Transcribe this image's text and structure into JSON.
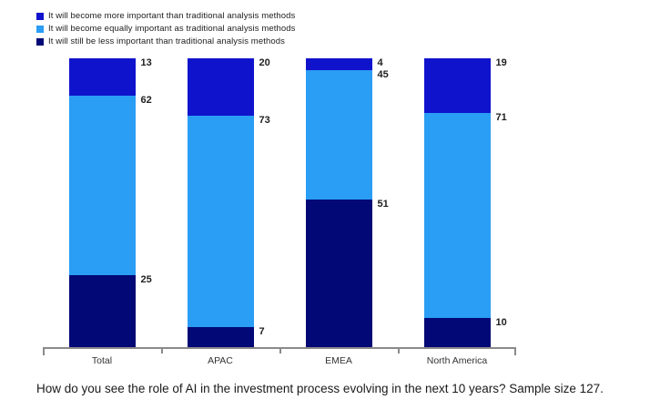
{
  "chart_data": {
    "type": "bar",
    "stacked": true,
    "orientation": "vertical",
    "unit": "percent",
    "title": "",
    "categories": [
      "Total",
      "APAC",
      "EMEA",
      "North America"
    ],
    "series": [
      {
        "name": "It will become more important than traditional analysis methods",
        "color": "#1013cc",
        "values": [
          13,
          20,
          4,
          19
        ]
      },
      {
        "name": "It will become equally important as traditional analysis methods",
        "color": "#2a9df4",
        "values": [
          62,
          73,
          45,
          71
        ]
      },
      {
        "name": "It will still be less important than traditional analysis methods",
        "color": "#020875",
        "values": [
          25,
          7,
          51,
          10
        ]
      }
    ],
    "value_labels": true,
    "legend_position": "top-left",
    "ylim": [
      0,
      100
    ],
    "grid": false,
    "axis_color": "#8a8a8a"
  },
  "caption": {
    "text": "How do you see the role of AI in the investment process evolving in the next 10 years? Sample size 127."
  }
}
